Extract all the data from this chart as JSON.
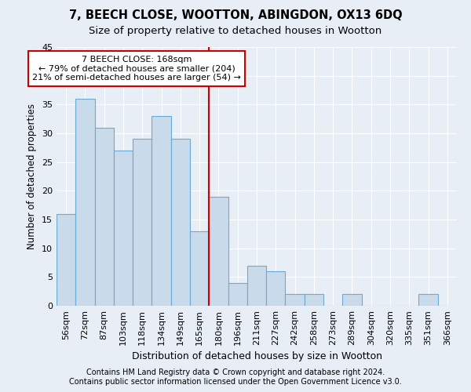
{
  "title1": "7, BEECH CLOSE, WOOTTON, ABINGDON, OX13 6DQ",
  "title2": "Size of property relative to detached houses in Wootton",
  "xlabel": "Distribution of detached houses by size in Wootton",
  "ylabel": "Number of detached properties",
  "bar_labels": [
    "56sqm",
    "72sqm",
    "87sqm",
    "103sqm",
    "118sqm",
    "134sqm",
    "149sqm",
    "165sqm",
    "180sqm",
    "196sqm",
    "211sqm",
    "227sqm",
    "242sqm",
    "258sqm",
    "273sqm",
    "289sqm",
    "304sqm",
    "320sqm",
    "335sqm",
    "351sqm",
    "366sqm"
  ],
  "bar_values": [
    16,
    36,
    31,
    27,
    29,
    33,
    29,
    13,
    19,
    4,
    7,
    6,
    2,
    2,
    0,
    2,
    0,
    0,
    0,
    2,
    0
  ],
  "bar_color": "#c9daea",
  "bar_edge_color": "#6aaad4",
  "vline_color": "#cc0000",
  "annotation_text": "7 BEECH CLOSE: 168sqm\n← 79% of detached houses are smaller (204)\n21% of semi-detached houses are larger (54) →",
  "annotation_box_color": "#ffffff",
  "annotation_box_edge": "#cc0000",
  "ylim": [
    0,
    45
  ],
  "yticks": [
    0,
    5,
    10,
    15,
    20,
    25,
    30,
    35,
    40,
    45
  ],
  "footer1": "Contains HM Land Registry data © Crown copyright and database right 2024.",
  "footer2": "Contains public sector information licensed under the Open Government Licence v3.0.",
  "bg_color": "#e8eef5",
  "plot_bg_color": "#e8eef5",
  "grid_color": "#ffffff",
  "title1_fontsize": 10.5,
  "title2_fontsize": 9.5,
  "xlabel_fontsize": 9,
  "ylabel_fontsize": 8.5,
  "tick_fontsize": 8,
  "annot_fontsize": 8,
  "footer_fontsize": 7
}
